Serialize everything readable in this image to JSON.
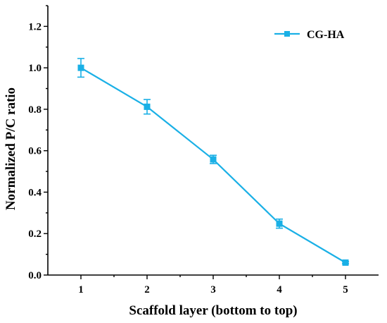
{
  "chart_data": {
    "type": "line",
    "xlabel": "Scaffold layer (bottom to top)",
    "ylabel": "Normalized P/C ratio",
    "xlim": [
      0.5,
      5.5
    ],
    "ylim": [
      0,
      1.3
    ],
    "x_ticks": [
      "1",
      "2",
      "3",
      "4",
      "5"
    ],
    "y_ticks": [
      "0.0",
      "0.2",
      "0.4",
      "0.6",
      "0.8",
      "1.0",
      "1.2"
    ],
    "legend_position": "top-right",
    "grid": false,
    "series": [
      {
        "name": "CG-HA",
        "color": "#1ab0e6",
        "marker": "square",
        "x": [
          1,
          2,
          3,
          4,
          5
        ],
        "y": [
          1.0,
          0.812,
          0.558,
          0.248,
          0.06
        ],
        "error": [
          0.045,
          0.035,
          0.02,
          0.022,
          0.005
        ]
      }
    ]
  }
}
